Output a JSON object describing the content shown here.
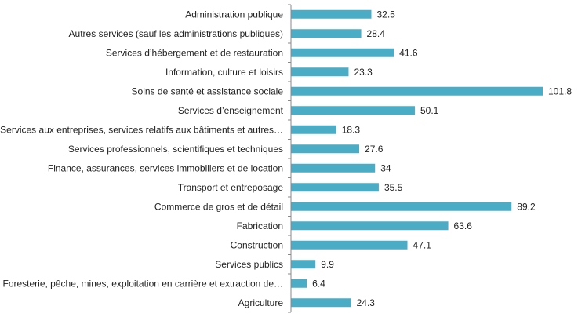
{
  "colors": {
    "bar": "#4BACC6",
    "axis": "#888888",
    "text": "#222222",
    "background": "#ffffff"
  },
  "chart_data": {
    "type": "bar",
    "orientation": "horizontal",
    "title": "",
    "xlabel": "",
    "ylabel": "",
    "grid": false,
    "legend": "none",
    "xlim": [
      0,
      101.8
    ],
    "categories": [
      "Administration publique",
      "Autres services (sauf les administrations publiques)",
      "Services d’hébergement et de restauration",
      "Information, culture et loisirs",
      "Soins de santé et assistance sociale",
      "Services d’enseignement",
      "Services aux entreprises, services relatifs aux bâtiments et autres…",
      "Services professionnels, scientifiques et techniques",
      "Finance, assurances, services immobiliers et de location",
      "Transport et entreposage",
      "Commerce de gros et de détail",
      "Fabrication",
      "Construction",
      "Services publics",
      "Foresterie, pêche, mines, exploitation en carrière et extraction de…",
      "Agriculture"
    ],
    "values": [
      32.5,
      28.4,
      41.6,
      23.3,
      101.8,
      50.1,
      18.3,
      27.6,
      34,
      35.5,
      89.2,
      63.6,
      47.1,
      9.9,
      6.4,
      24.3
    ],
    "data_labels": [
      "32.5",
      "28.4",
      "41.6",
      "23.3",
      "101.8",
      "50.1",
      "18.3",
      "27.6",
      "34",
      "35.5",
      "89.2",
      "63.6",
      "47.1",
      "9.9",
      "6.4",
      "24.3"
    ]
  }
}
